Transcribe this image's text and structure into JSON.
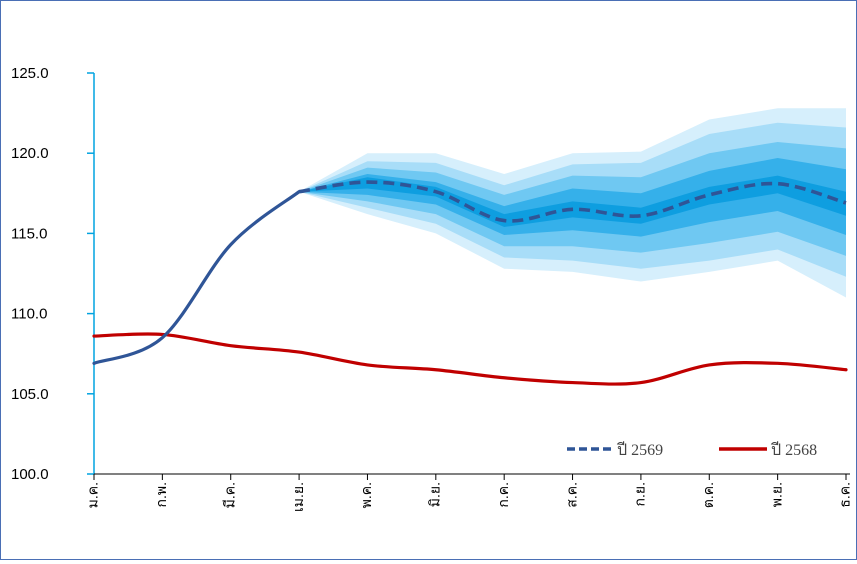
{
  "chart_data": {
    "type": "line",
    "title": "",
    "xlabel": "",
    "ylabel": "",
    "categories": [
      "ม.ค.",
      "ก.พ.",
      "มี.ค.",
      "เม.ย.",
      "พ.ค.",
      "มิ.ย.",
      "ก.ค.",
      "ส.ค.",
      "ก.ย.",
      "ต.ค.",
      "พ.ย.",
      "ธ.ค."
    ],
    "ylim": [
      100,
      125
    ],
    "yticks": [
      "100.0",
      "105.0",
      "110.0",
      "115.0",
      "120.0",
      "125.0"
    ],
    "grid": false,
    "legend_position": "bottom-right",
    "series": [
      {
        "name": "ปี 2569",
        "style": "solid-then-dashed",
        "color": "#2f5597",
        "values": [
          106.9,
          108.5,
          114.3,
          117.6,
          118.2,
          117.6,
          115.8,
          116.5,
          116.1,
          117.4,
          118.1,
          116.9
        ]
      },
      {
        "name": "ปี 2568",
        "style": "solid",
        "color": "#c00000",
        "values": [
          108.6,
          108.7,
          108.0,
          107.6,
          106.8,
          106.5,
          106.0,
          105.7,
          105.7,
          106.8,
          106.9,
          106.5
        ]
      }
    ],
    "fan_start_index": 3,
    "fan_bands": [
      {
        "color": "#d6effc",
        "lower": [
          117.6,
          116.2,
          115.0,
          112.8,
          112.6,
          112.0,
          112.6,
          113.3,
          111.0
        ],
        "upper": [
          117.6,
          120.0,
          120.0,
          118.7,
          120.0,
          120.1,
          122.1,
          122.8,
          122.8
        ]
      },
      {
        "color": "#a8ddf8",
        "lower": [
          117.6,
          116.6,
          115.6,
          113.5,
          113.3,
          112.8,
          113.3,
          114.0,
          112.3
        ],
        "upper": [
          117.6,
          119.5,
          119.4,
          118.0,
          119.3,
          119.4,
          121.2,
          121.9,
          121.6
        ]
      },
      {
        "color": "#6fc8f2",
        "lower": [
          117.6,
          117.0,
          116.2,
          114.2,
          114.2,
          113.8,
          114.4,
          115.1,
          113.6
        ],
        "upper": [
          117.6,
          119.1,
          118.8,
          117.4,
          118.6,
          118.5,
          120.0,
          120.7,
          120.3
        ]
      },
      {
        "color": "#35b0ea",
        "lower": [
          117.6,
          117.4,
          116.8,
          114.9,
          115.2,
          114.8,
          115.7,
          116.4,
          114.9
        ],
        "upper": [
          117.6,
          118.7,
          118.2,
          116.7,
          117.8,
          117.5,
          118.9,
          119.7,
          119.0
        ]
      },
      {
        "color": "#0e9ee0",
        "lower": [
          117.6,
          117.8,
          117.3,
          115.4,
          116.0,
          115.6,
          116.8,
          117.5,
          116.1
        ],
        "upper": [
          117.6,
          118.5,
          117.9,
          116.2,
          117.0,
          116.6,
          117.9,
          118.6,
          117.6
        ]
      }
    ]
  }
}
